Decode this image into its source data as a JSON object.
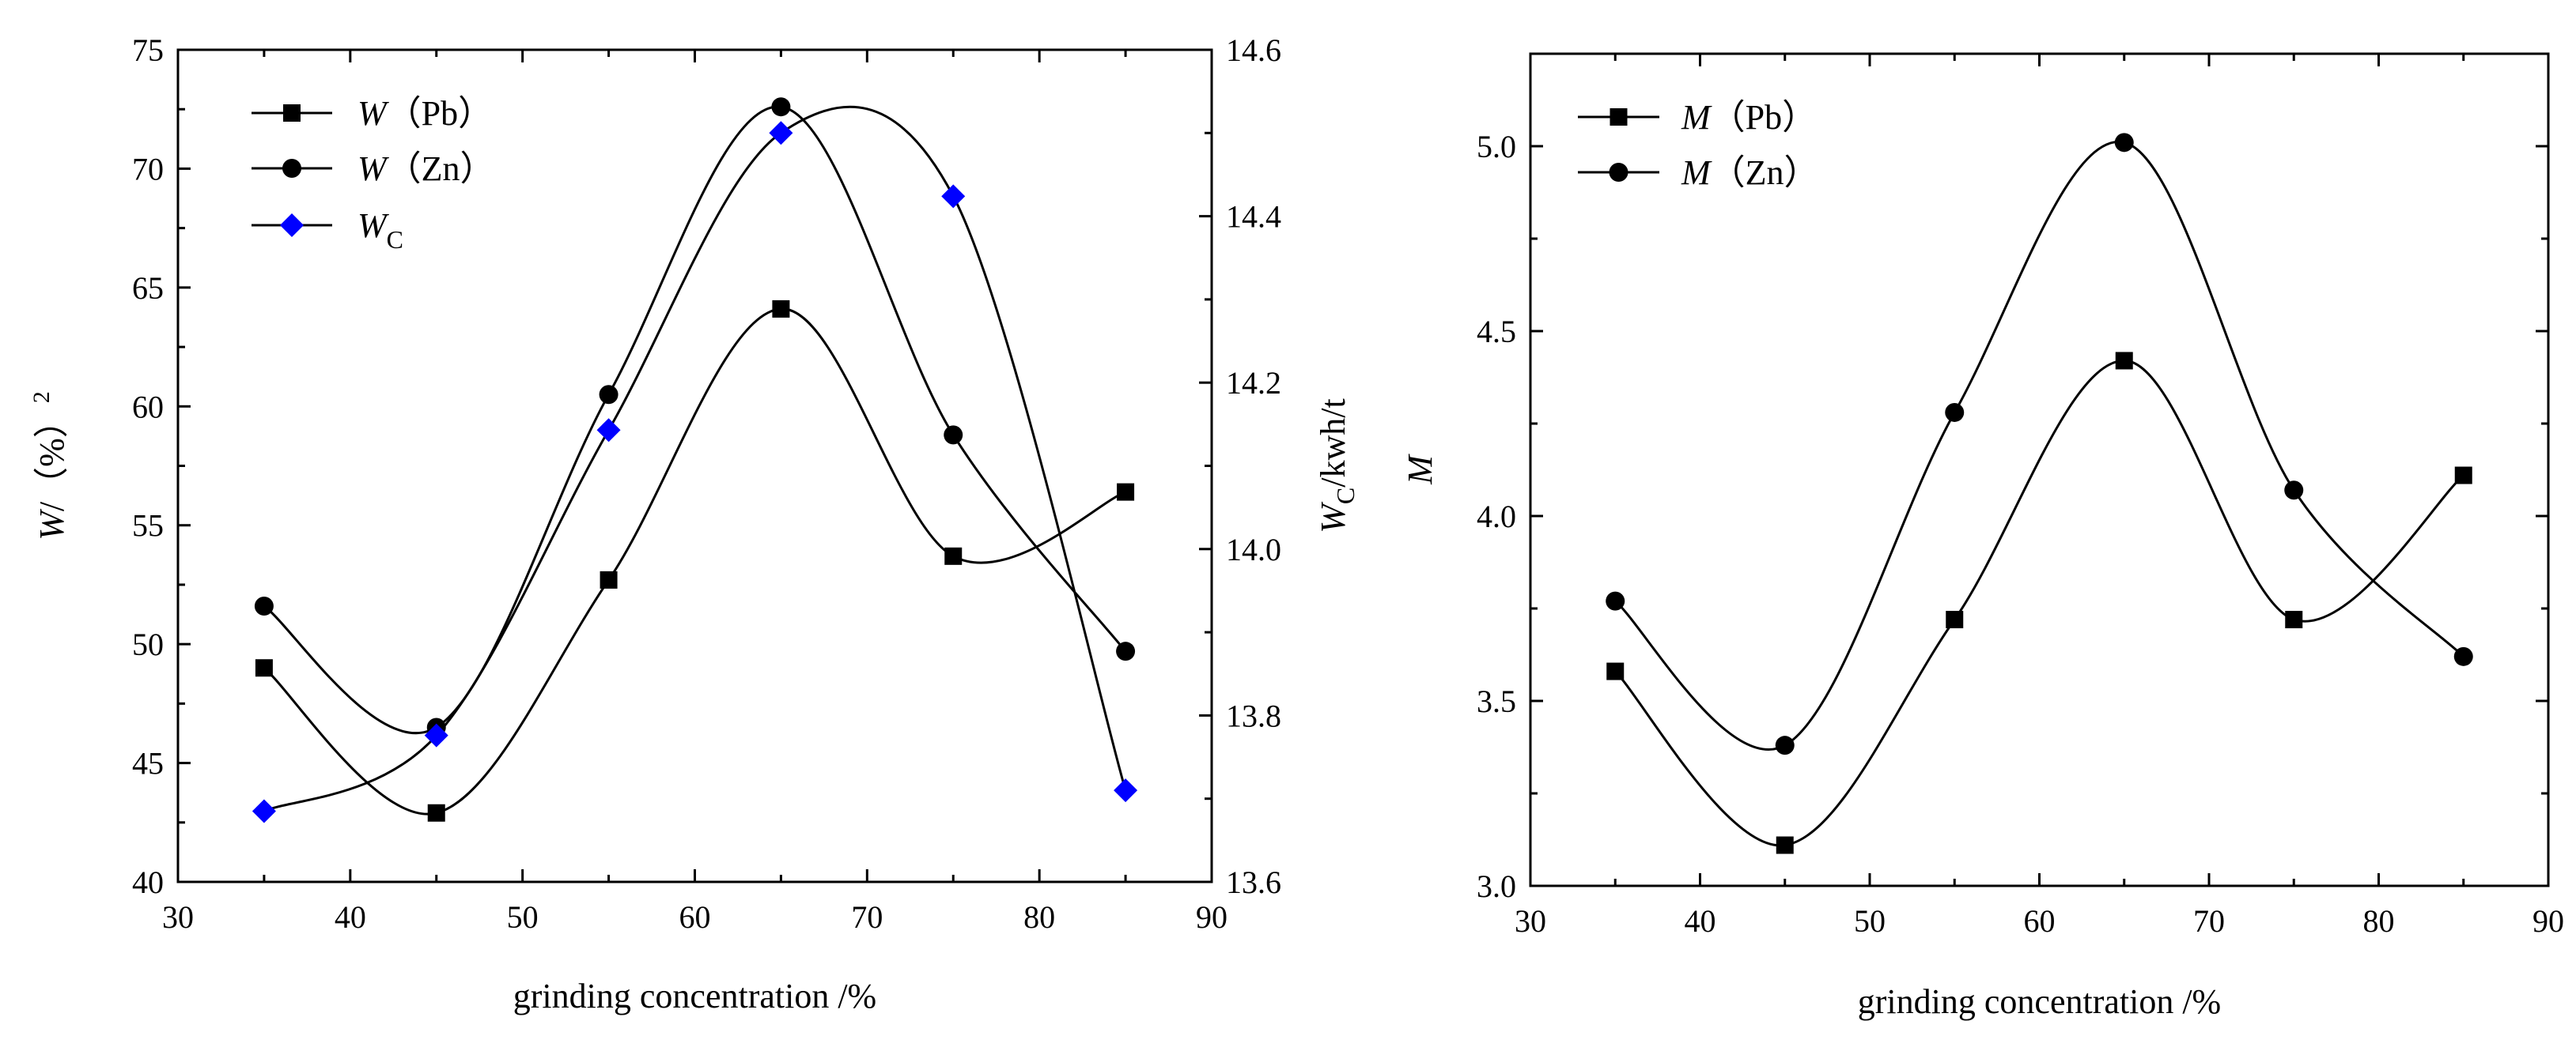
{
  "chart_data": [
    {
      "type": "line",
      "panel": "left",
      "xlabel": "grinding concentration /%",
      "ylabel": {
        "main": "W",
        "rest": "/（%）",
        "sup": "2"
      },
      "y2label": {
        "main": "W",
        "sub": "C",
        "rest": "/kwh/t"
      },
      "xlim": [
        30,
        90
      ],
      "ylim": [
        40,
        75
      ],
      "y2lim": [
        13.6,
        14.6
      ],
      "x_ticks": [
        30,
        40,
        50,
        60,
        70,
        80,
        90
      ],
      "x_tick_labels": [
        "30",
        "40",
        "50",
        "60",
        "70",
        "80",
        "90"
      ],
      "y_ticks": [
        40,
        45,
        50,
        55,
        60,
        65,
        70,
        75
      ],
      "y_tick_labels": [
        "40",
        "45",
        "50",
        "55",
        "60",
        "65",
        "70",
        "75"
      ],
      "y2_ticks": [
        13.6,
        13.8,
        14.0,
        14.2,
        14.4,
        14.6
      ],
      "y2_tick_labels": [
        "13.6",
        "13.8",
        "14.0",
        "14.2",
        "14.4",
        "14.6"
      ],
      "legend_position": "top-left",
      "series": [
        {
          "name": "W (Pb)",
          "label_main": "W",
          "label_rest": "（Pb）",
          "marker": "square",
          "color": "#000000",
          "axis": "left",
          "x": [
            35,
            45,
            55,
            65,
            75,
            85
          ],
          "values": [
            49.0,
            42.9,
            52.7,
            64.1,
            53.7,
            56.4
          ]
        },
        {
          "name": "W (Zn)",
          "label_main": "W",
          "label_rest": "（Zn）",
          "marker": "circle",
          "color": "#000000",
          "axis": "left",
          "x": [
            35,
            45,
            55,
            65,
            75,
            85
          ],
          "values": [
            51.6,
            46.5,
            60.5,
            72.6,
            58.8,
            49.7
          ]
        },
        {
          "name": "Wc",
          "label_main": "W",
          "label_sub": "C",
          "marker": "diamond",
          "color": "#0000ff",
          "axis": "right",
          "x": [
            35,
            45,
            55,
            65,
            75,
            85
          ],
          "values": [
            13.685,
            13.776,
            14.143,
            14.5,
            14.424,
            13.71
          ]
        }
      ]
    },
    {
      "type": "line",
      "panel": "right",
      "xlabel": "grinding concentration /%",
      "ylabel": {
        "main": "M"
      },
      "xlim": [
        30,
        90
      ],
      "ylim": [
        3.0,
        5.25
      ],
      "x_ticks": [
        30,
        40,
        50,
        60,
        70,
        80,
        90
      ],
      "x_tick_labels": [
        "30",
        "40",
        "50",
        "60",
        "70",
        "80",
        "90"
      ],
      "y_ticks": [
        3.0,
        3.5,
        4.0,
        4.5,
        5.0
      ],
      "y_tick_labels": [
        "3.0",
        "3.5",
        "4.0",
        "4.5",
        "5.0"
      ],
      "legend_position": "top-left",
      "series": [
        {
          "name": "M (Pb)",
          "label_main": "M",
          "label_rest": "（Pb）",
          "marker": "square",
          "color": "#000000",
          "x": [
            35,
            45,
            55,
            65,
            75,
            85
          ],
          "values": [
            3.58,
            3.11,
            3.72,
            4.42,
            3.72,
            4.11
          ]
        },
        {
          "name": "M (Zn)",
          "label_main": "M",
          "label_rest": "（Zn）",
          "marker": "circle",
          "color": "#000000",
          "x": [
            35,
            45,
            55,
            65,
            75,
            85
          ],
          "values": [
            3.77,
            3.38,
            4.28,
            5.01,
            4.07,
            3.62
          ]
        }
      ]
    }
  ]
}
